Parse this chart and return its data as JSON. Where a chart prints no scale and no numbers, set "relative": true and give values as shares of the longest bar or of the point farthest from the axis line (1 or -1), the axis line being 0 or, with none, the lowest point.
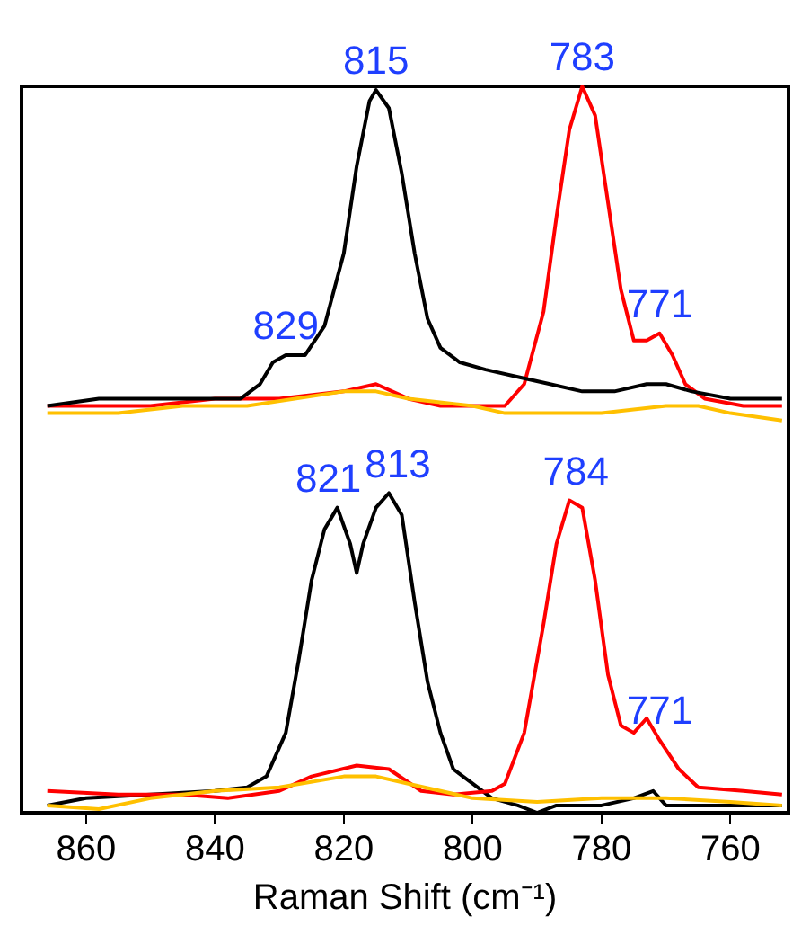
{
  "chart_data": {
    "type": "line",
    "relative": true,
    "xlabel": "Raman Shift (cm⁻¹)",
    "xlim": [
      870,
      751
    ],
    "xticks": [
      860,
      840,
      820,
      800,
      780,
      760
    ],
    "grid": false,
    "legend": false,
    "marker": "none",
    "line_style": "solid",
    "series": [
      {
        "color": "#ffc000",
        "x": [
          866,
          855,
          845,
          835,
          820,
          815,
          810,
          800,
          795,
          790,
          780,
          770,
          765,
          760,
          752
        ],
        "values": [
          0.55,
          0.55,
          0.56,
          0.56,
          0.58,
          0.58,
          0.57,
          0.56,
          0.55,
          0.55,
          0.55,
          0.56,
          0.56,
          0.55,
          0.54
        ]
      },
      {
        "color": "#000000",
        "x": [
          866,
          858,
          850,
          842,
          836,
          833,
          831,
          829,
          827,
          826,
          823,
          820,
          818,
          816,
          815,
          813,
          811,
          809,
          807,
          805,
          802,
          798,
          793,
          788,
          783,
          778,
          773,
          770,
          766,
          760,
          756,
          752
        ],
        "values": [
          0.56,
          0.57,
          0.57,
          0.57,
          0.57,
          0.59,
          0.62,
          0.63,
          0.63,
          0.63,
          0.67,
          0.77,
          0.89,
          0.98,
          0.995,
          0.97,
          0.88,
          0.77,
          0.68,
          0.64,
          0.62,
          0.61,
          0.6,
          0.59,
          0.58,
          0.58,
          0.59,
          0.59,
          0.58,
          0.57,
          0.57,
          0.57
        ]
      },
      {
        "color": "#ff0000",
        "x": [
          866,
          850,
          840,
          830,
          820,
          815,
          810,
          805,
          798,
          795,
          792,
          789,
          787,
          785,
          783,
          781,
          779,
          777,
          775,
          773,
          771,
          769,
          767,
          764,
          758,
          752
        ],
        "values": [
          0.56,
          0.56,
          0.57,
          0.57,
          0.58,
          0.59,
          0.57,
          0.56,
          0.56,
          0.56,
          0.59,
          0.69,
          0.82,
          0.94,
          1,
          0.96,
          0.84,
          0.72,
          0.65,
          0.65,
          0.66,
          0.63,
          0.59,
          0.57,
          0.56,
          0.56
        ]
      },
      {
        "color": "#ffc000",
        "x": [
          866,
          858,
          850,
          840,
          830,
          820,
          815,
          810,
          800,
          790,
          780,
          770,
          760,
          752
        ],
        "values": [
          0.01,
          0.005,
          0.02,
          0.03,
          0.035,
          0.05,
          0.05,
          0.04,
          0.02,
          0.015,
          0.02,
          0.02,
          0.015,
          0.01
        ]
      },
      {
        "color": "#ff0000",
        "x": [
          866,
          855,
          845,
          838,
          830,
          825,
          818,
          813,
          808,
          803,
          797,
          795,
          792,
          789,
          787,
          785,
          783,
          781,
          779,
          777,
          775,
          773,
          771,
          768,
          765,
          758,
          752
        ],
        "values": [
          0.03,
          0.025,
          0.025,
          0.02,
          0.03,
          0.05,
          0.065,
          0.06,
          0.03,
          0.025,
          0.03,
          0.04,
          0.11,
          0.26,
          0.37,
          0.43,
          0.42,
          0.32,
          0.19,
          0.12,
          0.11,
          0.13,
          0.1,
          0.06,
          0.035,
          0.03,
          0.025
        ]
      },
      {
        "color": "#000000",
        "x": [
          866,
          860,
          850,
          840,
          835,
          832,
          829,
          827,
          825,
          823,
          821,
          819,
          818,
          817,
          815,
          813,
          811,
          809,
          807,
          805,
          803,
          800,
          797,
          793,
          790,
          787,
          780,
          775,
          772,
          770,
          760,
          752
        ],
        "values": [
          0.01,
          0.02,
          0.025,
          0.03,
          0.035,
          0.05,
          0.11,
          0.21,
          0.32,
          0.39,
          0.42,
          0.37,
          0.33,
          0.37,
          0.42,
          0.44,
          0.41,
          0.29,
          0.18,
          0.11,
          0.06,
          0.04,
          0.02,
          0.01,
          0,
          0.01,
          0.01,
          0.02,
          0.03,
          0.01,
          0.01,
          0.01
        ]
      }
    ],
    "annotations": [
      {
        "text": "815",
        "x": 815,
        "y": 0.995
      },
      {
        "text": "783",
        "x": 783,
        "y": 1
      },
      {
        "text": "829",
        "x": 829,
        "y": 0.63
      },
      {
        "text": "771",
        "x": 771,
        "y": 0.66
      },
      {
        "text": "821",
        "x": 821,
        "y": 0.42
      },
      {
        "text": "813",
        "x": 813,
        "y": 0.44
      },
      {
        "text": "784",
        "x": 784,
        "y": 0.43
      },
      {
        "text": "771",
        "x": 771,
        "y": 0.1
      }
    ]
  }
}
